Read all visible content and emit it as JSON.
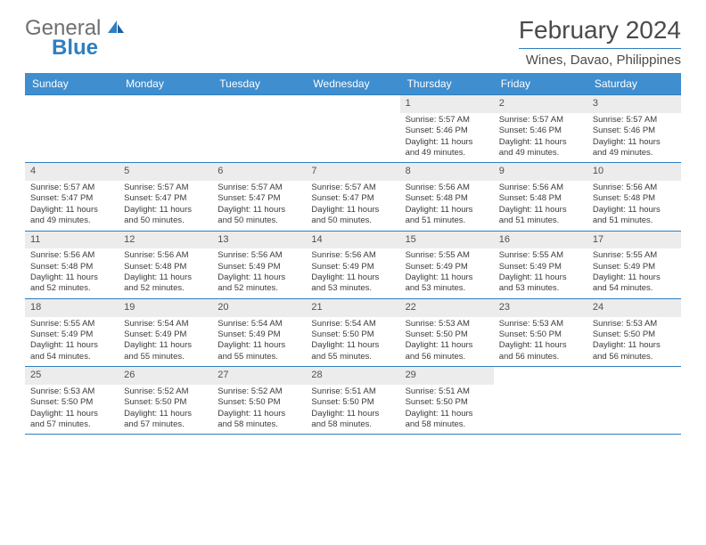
{
  "logo": {
    "text1": "General",
    "text2": "Blue"
  },
  "title": "February 2024",
  "location": "Wines, Davao, Philippines",
  "colors": {
    "header_bg": "#3f8ed0",
    "accent": "#2f7fc1",
    "daynum_bg": "#ececec",
    "text": "#3b3b3b",
    "title_text": "#4a4a4a"
  },
  "day_names": [
    "Sunday",
    "Monday",
    "Tuesday",
    "Wednesday",
    "Thursday",
    "Friday",
    "Saturday"
  ],
  "weeks": [
    [
      {
        "n": "",
        "empty": true
      },
      {
        "n": "",
        "empty": true
      },
      {
        "n": "",
        "empty": true
      },
      {
        "n": "",
        "empty": true
      },
      {
        "n": "1",
        "sr": "Sunrise: 5:57 AM",
        "ss": "Sunset: 5:46 PM",
        "d1": "Daylight: 11 hours",
        "d2": "and 49 minutes."
      },
      {
        "n": "2",
        "sr": "Sunrise: 5:57 AM",
        "ss": "Sunset: 5:46 PM",
        "d1": "Daylight: 11 hours",
        "d2": "and 49 minutes."
      },
      {
        "n": "3",
        "sr": "Sunrise: 5:57 AM",
        "ss": "Sunset: 5:46 PM",
        "d1": "Daylight: 11 hours",
        "d2": "and 49 minutes."
      }
    ],
    [
      {
        "n": "4",
        "sr": "Sunrise: 5:57 AM",
        "ss": "Sunset: 5:47 PM",
        "d1": "Daylight: 11 hours",
        "d2": "and 49 minutes."
      },
      {
        "n": "5",
        "sr": "Sunrise: 5:57 AM",
        "ss": "Sunset: 5:47 PM",
        "d1": "Daylight: 11 hours",
        "d2": "and 50 minutes."
      },
      {
        "n": "6",
        "sr": "Sunrise: 5:57 AM",
        "ss": "Sunset: 5:47 PM",
        "d1": "Daylight: 11 hours",
        "d2": "and 50 minutes."
      },
      {
        "n": "7",
        "sr": "Sunrise: 5:57 AM",
        "ss": "Sunset: 5:47 PM",
        "d1": "Daylight: 11 hours",
        "d2": "and 50 minutes."
      },
      {
        "n": "8",
        "sr": "Sunrise: 5:56 AM",
        "ss": "Sunset: 5:48 PM",
        "d1": "Daylight: 11 hours",
        "d2": "and 51 minutes."
      },
      {
        "n": "9",
        "sr": "Sunrise: 5:56 AM",
        "ss": "Sunset: 5:48 PM",
        "d1": "Daylight: 11 hours",
        "d2": "and 51 minutes."
      },
      {
        "n": "10",
        "sr": "Sunrise: 5:56 AM",
        "ss": "Sunset: 5:48 PM",
        "d1": "Daylight: 11 hours",
        "d2": "and 51 minutes."
      }
    ],
    [
      {
        "n": "11",
        "sr": "Sunrise: 5:56 AM",
        "ss": "Sunset: 5:48 PM",
        "d1": "Daylight: 11 hours",
        "d2": "and 52 minutes."
      },
      {
        "n": "12",
        "sr": "Sunrise: 5:56 AM",
        "ss": "Sunset: 5:48 PM",
        "d1": "Daylight: 11 hours",
        "d2": "and 52 minutes."
      },
      {
        "n": "13",
        "sr": "Sunrise: 5:56 AM",
        "ss": "Sunset: 5:49 PM",
        "d1": "Daylight: 11 hours",
        "d2": "and 52 minutes."
      },
      {
        "n": "14",
        "sr": "Sunrise: 5:56 AM",
        "ss": "Sunset: 5:49 PM",
        "d1": "Daylight: 11 hours",
        "d2": "and 53 minutes."
      },
      {
        "n": "15",
        "sr": "Sunrise: 5:55 AM",
        "ss": "Sunset: 5:49 PM",
        "d1": "Daylight: 11 hours",
        "d2": "and 53 minutes."
      },
      {
        "n": "16",
        "sr": "Sunrise: 5:55 AM",
        "ss": "Sunset: 5:49 PM",
        "d1": "Daylight: 11 hours",
        "d2": "and 53 minutes."
      },
      {
        "n": "17",
        "sr": "Sunrise: 5:55 AM",
        "ss": "Sunset: 5:49 PM",
        "d1": "Daylight: 11 hours",
        "d2": "and 54 minutes."
      }
    ],
    [
      {
        "n": "18",
        "sr": "Sunrise: 5:55 AM",
        "ss": "Sunset: 5:49 PM",
        "d1": "Daylight: 11 hours",
        "d2": "and 54 minutes."
      },
      {
        "n": "19",
        "sr": "Sunrise: 5:54 AM",
        "ss": "Sunset: 5:49 PM",
        "d1": "Daylight: 11 hours",
        "d2": "and 55 minutes."
      },
      {
        "n": "20",
        "sr": "Sunrise: 5:54 AM",
        "ss": "Sunset: 5:49 PM",
        "d1": "Daylight: 11 hours",
        "d2": "and 55 minutes."
      },
      {
        "n": "21",
        "sr": "Sunrise: 5:54 AM",
        "ss": "Sunset: 5:50 PM",
        "d1": "Daylight: 11 hours",
        "d2": "and 55 minutes."
      },
      {
        "n": "22",
        "sr": "Sunrise: 5:53 AM",
        "ss": "Sunset: 5:50 PM",
        "d1": "Daylight: 11 hours",
        "d2": "and 56 minutes."
      },
      {
        "n": "23",
        "sr": "Sunrise: 5:53 AM",
        "ss": "Sunset: 5:50 PM",
        "d1": "Daylight: 11 hours",
        "d2": "and 56 minutes."
      },
      {
        "n": "24",
        "sr": "Sunrise: 5:53 AM",
        "ss": "Sunset: 5:50 PM",
        "d1": "Daylight: 11 hours",
        "d2": "and 56 minutes."
      }
    ],
    [
      {
        "n": "25",
        "sr": "Sunrise: 5:53 AM",
        "ss": "Sunset: 5:50 PM",
        "d1": "Daylight: 11 hours",
        "d2": "and 57 minutes."
      },
      {
        "n": "26",
        "sr": "Sunrise: 5:52 AM",
        "ss": "Sunset: 5:50 PM",
        "d1": "Daylight: 11 hours",
        "d2": "and 57 minutes."
      },
      {
        "n": "27",
        "sr": "Sunrise: 5:52 AM",
        "ss": "Sunset: 5:50 PM",
        "d1": "Daylight: 11 hours",
        "d2": "and 58 minutes."
      },
      {
        "n": "28",
        "sr": "Sunrise: 5:51 AM",
        "ss": "Sunset: 5:50 PM",
        "d1": "Daylight: 11 hours",
        "d2": "and 58 minutes."
      },
      {
        "n": "29",
        "sr": "Sunrise: 5:51 AM",
        "ss": "Sunset: 5:50 PM",
        "d1": "Daylight: 11 hours",
        "d2": "and 58 minutes."
      },
      {
        "n": "",
        "empty": true
      },
      {
        "n": "",
        "empty": true
      }
    ]
  ]
}
